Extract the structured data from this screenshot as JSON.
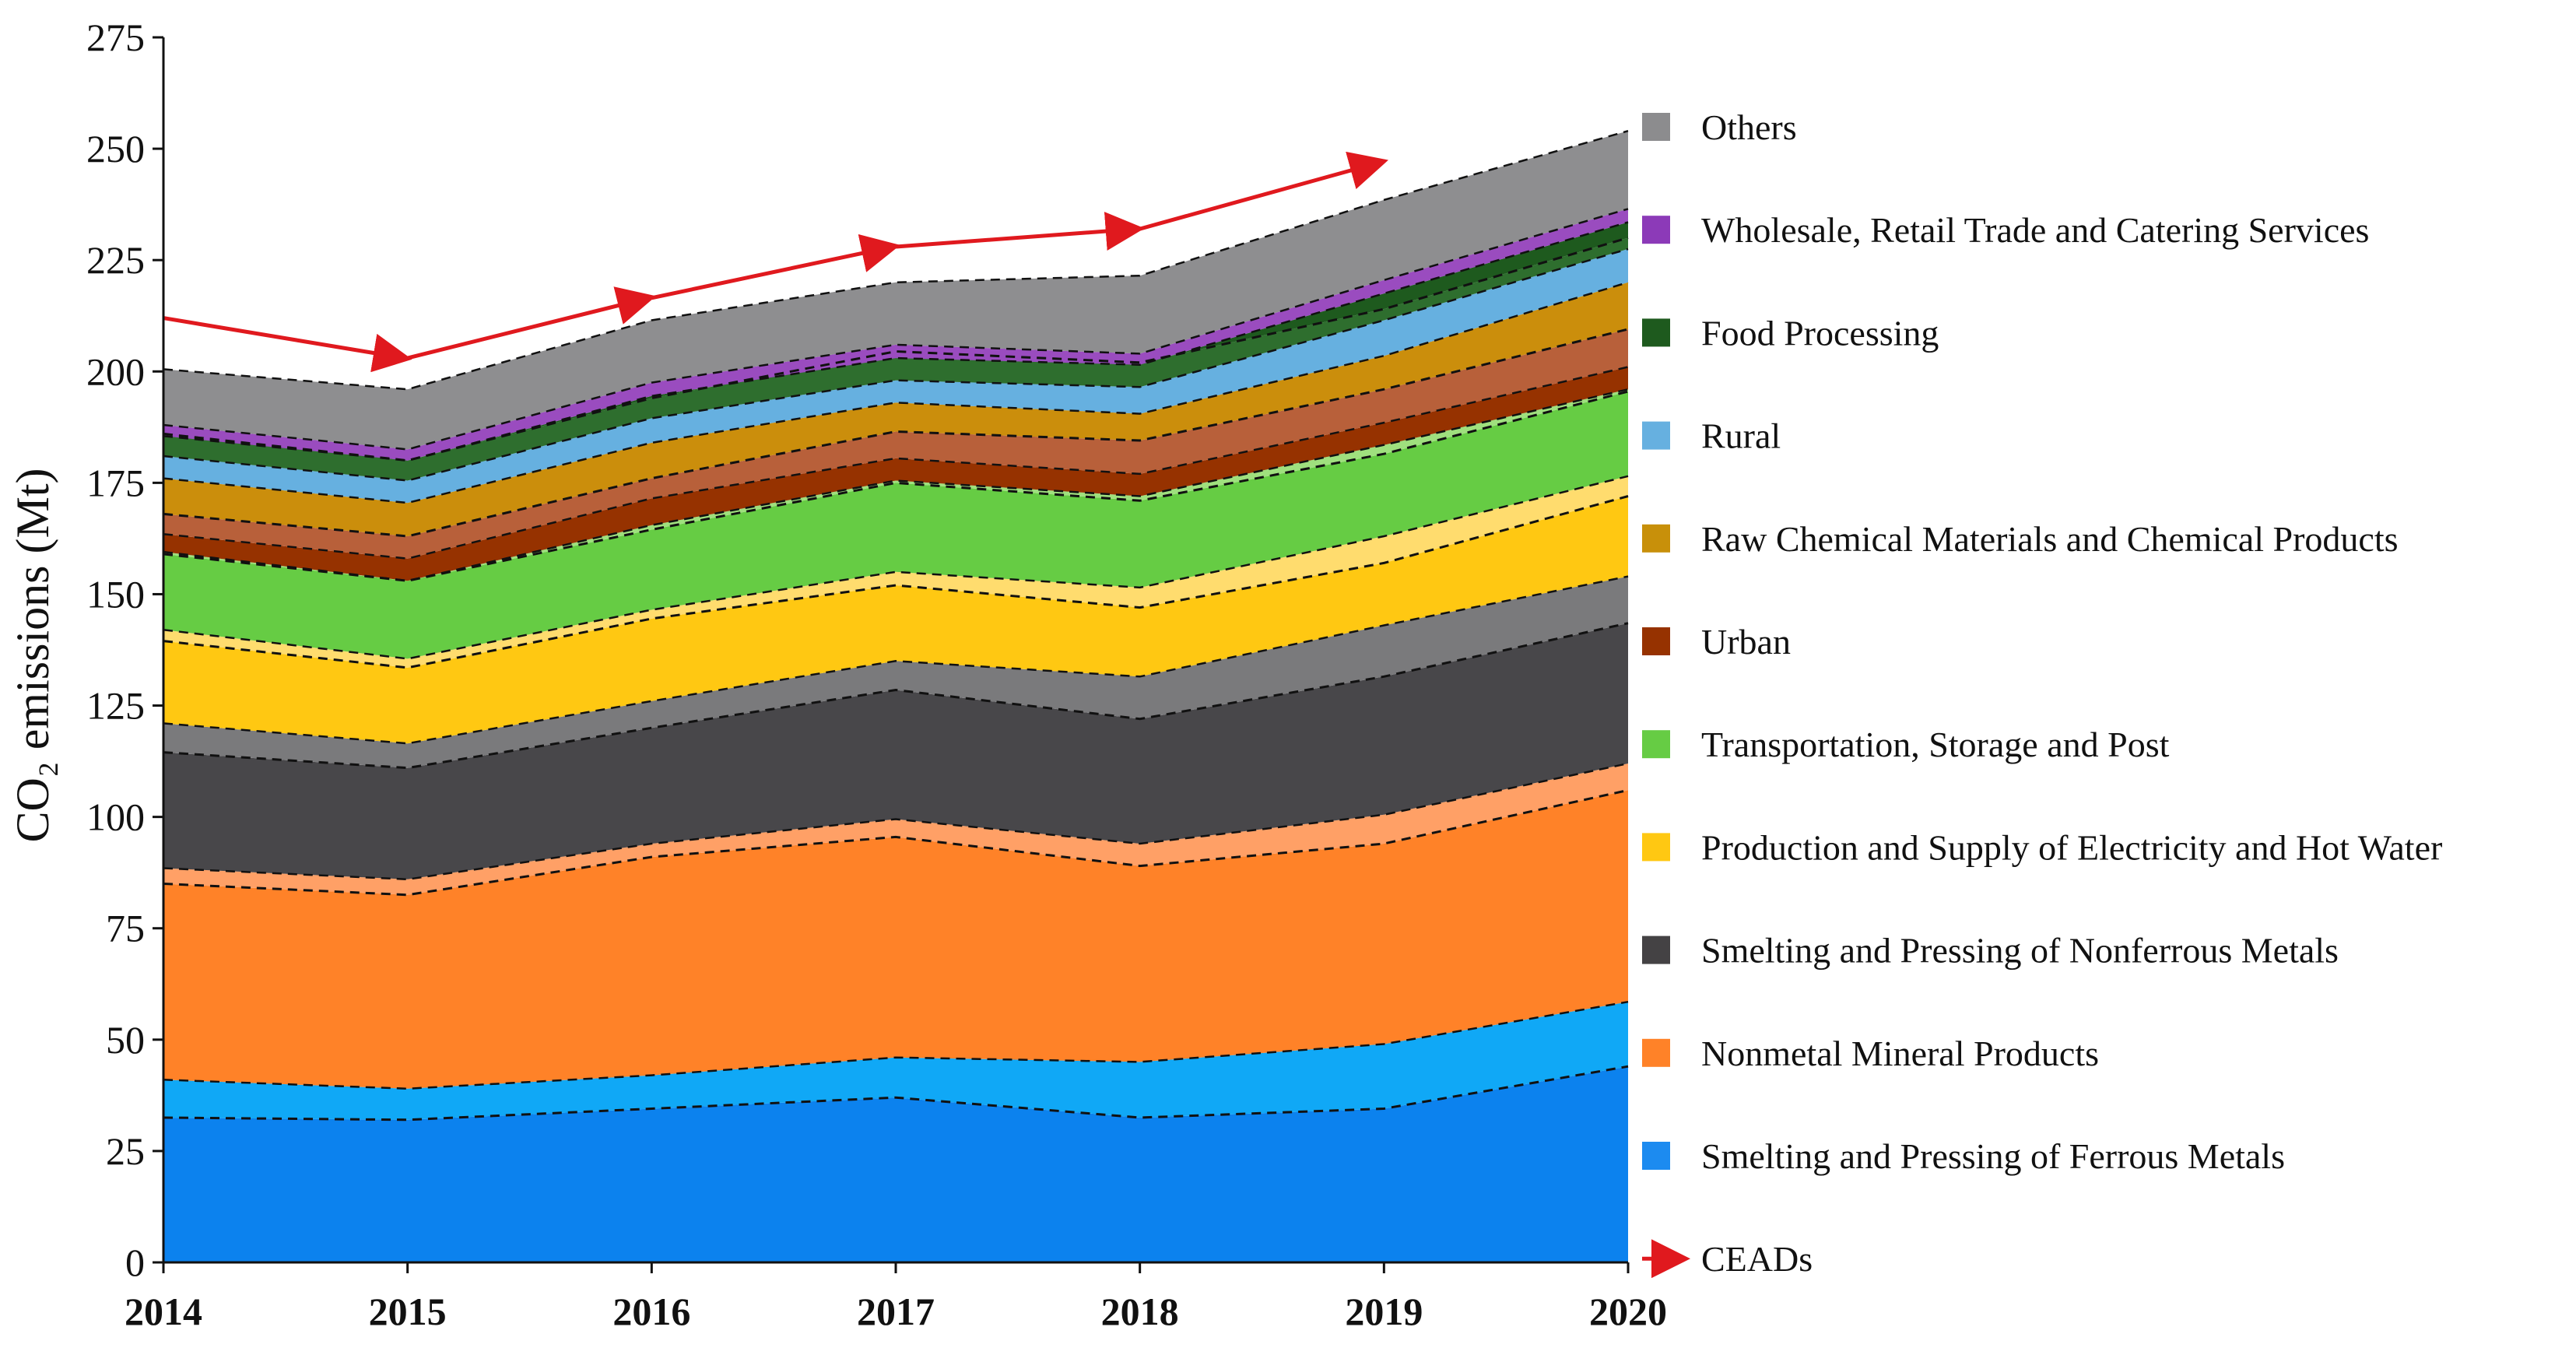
{
  "chart_data": {
    "type": "area",
    "stacked": true,
    "title": "",
    "xlabel": "",
    "ylabel": "CO₂ emissions (Mt)",
    "x": [
      "2014",
      "2015",
      "2016",
      "2017",
      "2018",
      "2019",
      "2020"
    ],
    "ylim": [
      0,
      275
    ],
    "yticks": [
      0,
      25,
      50,
      75,
      100,
      125,
      150,
      175,
      200,
      225,
      250,
      275
    ],
    "grid": false,
    "legend_position": "right",
    "series": [
      {
        "name": "Smelting and Pressing of Ferrous Metals",
        "color": "#1C8BF0",
        "values": [
          41,
          39,
          42,
          46,
          45,
          49,
          58.5
        ],
        "inner_boundary": [
          32.5,
          32,
          34.5,
          37,
          32.5,
          34.5,
          44
        ],
        "shades": [
          "#0C82EE",
          "#10A8F6"
        ]
      },
      {
        "name": "Nonmetal Mineral Products",
        "color": "#FF8228",
        "values": [
          47.5,
          47,
          52,
          53.5,
          49,
          51.5,
          53.5
        ],
        "inner_boundary_top": [
          85,
          82.5,
          91,
          95.5,
          89,
          94,
          106
        ],
        "shades": [
          "#FF8228",
          "#FFA066"
        ]
      },
      {
        "name": "Smelting and Pressing of Nonferrous Metals",
        "color": "#444244",
        "values": [
          32.5,
          30.5,
          32,
          35.5,
          37.5,
          42.5,
          42
        ],
        "inner_boundary_top": [
          114.5,
          111,
          120,
          128.5,
          122,
          131.5,
          143.5
        ],
        "shades": [
          "#48474A",
          "#7A7A7C"
        ]
      },
      {
        "name": "Production and Supply of Electricity and Hot Water",
        "color": "#FFC812",
        "values": [
          21,
          19,
          20.5,
          20,
          20,
          20,
          22.5
        ],
        "inner_boundary_top": [
          139.5,
          133.5,
          144.5,
          152,
          147,
          157,
          172
        ],
        "shades": [
          "#FFC812",
          "#FFDC6E"
        ]
      },
      {
        "name": "Transportation, Storage and Post",
        "color": "#66CC44",
        "values": [
          17.5,
          17.5,
          19,
          20.5,
          20.5,
          20.5,
          19.5
        ],
        "inner_boundary_top": [
          159,
          153,
          164.5,
          175,
          171,
          181.5,
          195.5
        ],
        "shades": [
          "#66CC44",
          "#9FE07E"
        ]
      },
      {
        "name": "Urban",
        "color": "#963200",
        "values": [
          4,
          5,
          6,
          5,
          5,
          5,
          5
        ],
        "shades": [
          "#963200"
        ]
      },
      {
        "name": "Raw Chemical Materials and Chemical Products",
        "color": "#C8900A",
        "values": [
          12.5,
          12.5,
          12.5,
          12.5,
          13.5,
          15,
          19
        ],
        "inner_boundary_top": [
          168,
          163,
          176,
          186.5,
          184.5,
          196,
          209.5
        ],
        "shades": [
          "#B8603A",
          "#CB8E0C"
        ]
      },
      {
        "name": "Rural",
        "color": "#66B0E0",
        "values": [
          5,
          5,
          5.5,
          5,
          6,
          8,
          7.5
        ],
        "shades": [
          "#66B0E0"
        ]
      },
      {
        "name": "Food Processing",
        "color": "#1E5A1E",
        "values": [
          4.5,
          4.5,
          5,
          5,
          5,
          6,
          6
        ],
        "inner_boundary_top": [
          186,
          180,
          194,
          204.5,
          202,
          214,
          230
        ],
        "shades": [
          "#2E6E2E",
          "#1E5A1E"
        ]
      },
      {
        "name": "Wholesale, Retail Trade and Catering Services",
        "color": "#8C3AB8",
        "values": [
          2.5,
          2.5,
          3,
          3,
          2.5,
          3,
          3
        ],
        "shades": [
          "#9A4CBF"
        ]
      },
      {
        "name": "Others",
        "color": "#8C8C8E",
        "values": [
          12.5,
          13.5,
          14,
          14,
          17.5,
          18,
          17.5
        ],
        "shades": [
          "#8E8E90"
        ]
      }
    ],
    "ceads": {
      "name": "CEADs",
      "color": "#E0191E",
      "x": [
        "2014",
        "2015",
        "2016",
        "2017",
        "2018",
        "2019"
      ],
      "values": [
        212,
        203,
        216.5,
        228,
        232,
        247
      ]
    }
  }
}
